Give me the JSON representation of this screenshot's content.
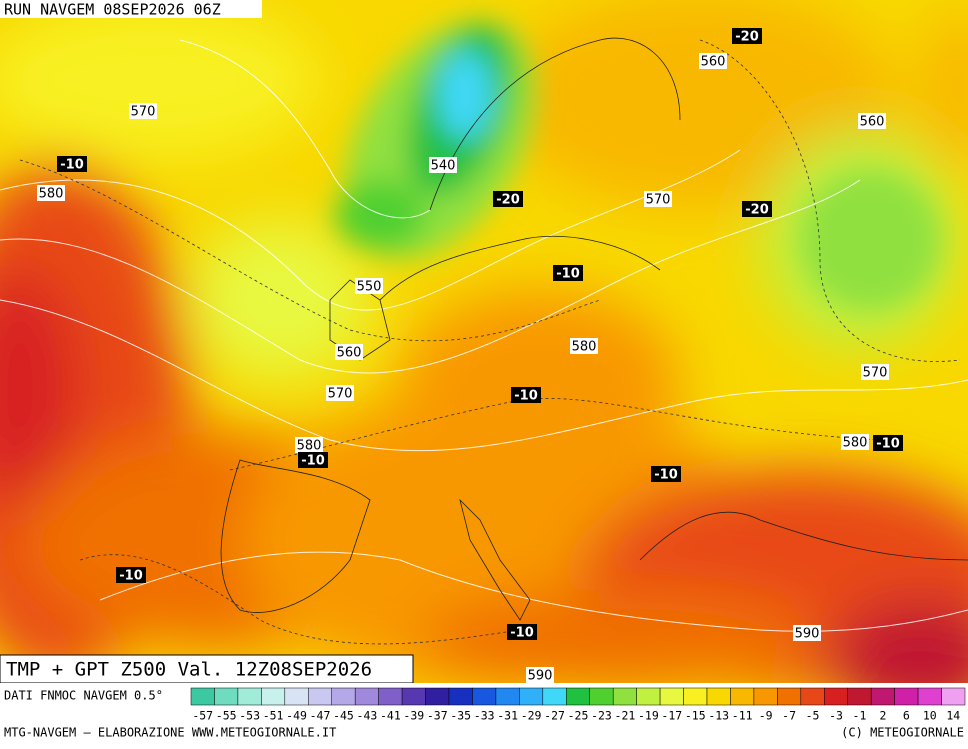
{
  "header": {
    "run": "RUN NAVGEM 08SEP2026 06Z"
  },
  "title": "TMP + GPT Z500 Val. 12Z08SEP2026",
  "source": "DATI FNMOC NAVGEM 0.5°",
  "footer_left": "MTG-NAVGEM — ELABORAZIONE WWW.METEOGIORNALE.IT",
  "footer_right": "(C) METEOGIORNALE",
  "geopotential_labels": [
    570,
    580,
    540,
    560,
    560,
    570,
    550,
    560,
    580,
    570,
    580,
    570,
    580,
    590,
    590
  ],
  "temperature_labels": [
    -20,
    -10,
    -20,
    -20,
    -10,
    -10,
    -10,
    -10,
    -10,
    -10,
    -10
  ],
  "colorbar": {
    "labels": [
      -57,
      -55,
      -53,
      -51,
      -49,
      -47,
      -45,
      -43,
      -41,
      -39,
      -37,
      -35,
      -33,
      -31,
      -29,
      -27,
      -25,
      -23,
      -21,
      -19,
      -17,
      -15,
      -13,
      -11,
      -9,
      -7,
      -5,
      -3,
      -1,
      2,
      6,
      10,
      14
    ],
    "colors": [
      "#3cc8a0",
      "#6fdcbf",
      "#a0ecd8",
      "#c8f0ec",
      "#d8e4f4",
      "#c8c8f0",
      "#b4a8e8",
      "#a088dc",
      "#8060c8",
      "#5838b0",
      "#3020a0",
      "#1830c0",
      "#1858e0",
      "#2088f0",
      "#30b0f8",
      "#40d8f8",
      "#20c040",
      "#50d030",
      "#90e040",
      "#c0f040",
      "#e8f840",
      "#f8f020",
      "#f8d800",
      "#f8b800",
      "#f89800",
      "#f07000",
      "#e84818",
      "#d82020",
      "#c01830",
      "#c01870",
      "#d020a8",
      "#e040d0",
      "#f0a0f0"
    ]
  }
}
